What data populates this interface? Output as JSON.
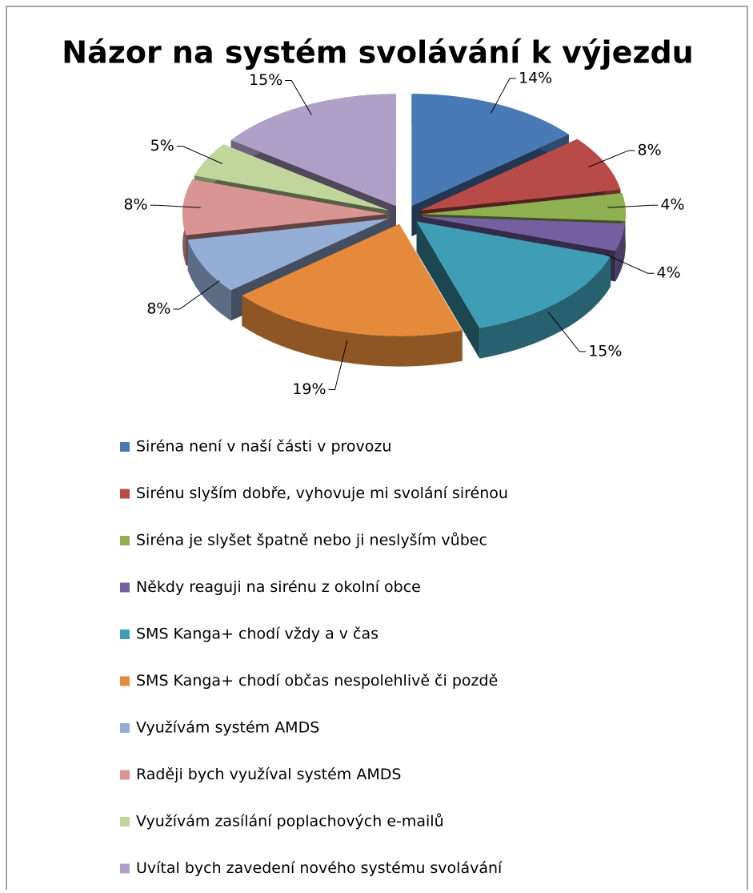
{
  "chart_data": {
    "type": "pie3d",
    "title": "Názor na systém svolávání k výjezdu",
    "categories": [
      "Siréna není v naší části v provozu",
      "Sirénu slyším dobře, vyhovuje mi svolání sirénou",
      "Siréna je slyšet špatně nebo ji neslyším vůbec",
      "Někdy reaguji na sirénu z okolní obce",
      "SMS Kanga+ chodí vždy a v čas",
      "SMS Kanga+ chodí občas nespolehlivě či pozdě",
      "Využívám systém AMDS",
      "Raději bych využíval systém AMDS",
      "Využívám zasílání poplachových e-mailů",
      "Uvítal bych zavedení nového systému svolávání"
    ],
    "values": [
      14,
      8,
      4,
      4,
      15,
      19,
      8,
      8,
      5,
      15
    ],
    "value_labels": [
      "14%",
      "8%",
      "4%",
      "4%",
      "15%",
      "19%",
      "8%",
      "8%",
      "5%",
      "15%"
    ],
    "colors": [
      "#4a7ab5",
      "#b84a47",
      "#8fb050",
      "#7460a0",
      "#3f9db5",
      "#e58a3a",
      "#95aed6",
      "#d99594",
      "#c0d69b",
      "#afa0c8"
    ],
    "legend": "bottom"
  }
}
